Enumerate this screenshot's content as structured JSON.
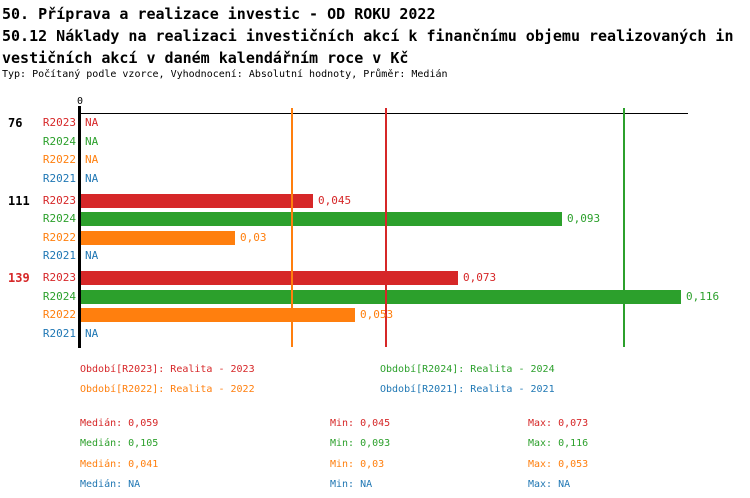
{
  "header": {
    "line1": "50. Příprava a realizace investic - OD ROKU 2022",
    "line2": "50.12 Náklady na realizaci investičních akcí k finančnímu objemu realizovaných in",
    "line3": "vestičních akcí v daném kalendářním roce v Kč",
    "meta": "Typ: Počítaný podle vzorce, Vyhodnocení: Absolutní hodnoty, Průměr: Medián"
  },
  "chart_data": {
    "type": "bar",
    "orientation": "horizontal",
    "x_axis": {
      "zero_tick_label": "0",
      "xlim": [
        0,
        0.129
      ],
      "grid": false
    },
    "series": [
      {
        "id": "R2023",
        "color": "#d62728",
        "median": 0.059
      },
      {
        "id": "R2024",
        "color": "#2ca02c",
        "median": 0.105
      },
      {
        "id": "R2022",
        "color": "#ff7f0e",
        "median": 0.041
      },
      {
        "id": "R2021",
        "color": "#1f77b4",
        "median": null
      }
    ],
    "groups": [
      {
        "label": "76",
        "label_color": "#000000",
        "rows": [
          {
            "series": "R2023",
            "value": null,
            "display": "NA"
          },
          {
            "series": "R2024",
            "value": null,
            "display": "NA"
          },
          {
            "series": "R2022",
            "value": null,
            "display": "NA"
          },
          {
            "series": "R2021",
            "value": null,
            "display": "NA"
          }
        ]
      },
      {
        "label": "111",
        "label_color": "#000000",
        "rows": [
          {
            "series": "R2023",
            "value": 0.045,
            "display": "0,045"
          },
          {
            "series": "R2024",
            "value": 0.093,
            "display": "0,093"
          },
          {
            "series": "R2022",
            "value": 0.03,
            "display": "0,03"
          },
          {
            "series": "R2021",
            "value": null,
            "display": "NA"
          }
        ]
      },
      {
        "label": "139",
        "label_color": "#d62728",
        "rows": [
          {
            "series": "R2023",
            "value": 0.073,
            "display": "0,073"
          },
          {
            "series": "R2024",
            "value": 0.116,
            "display": "0,116"
          },
          {
            "series": "R2022",
            "value": 0.053,
            "display": "0,053"
          },
          {
            "series": "R2021",
            "value": null,
            "display": "NA"
          }
        ]
      }
    ]
  },
  "legend": {
    "items": [
      {
        "text": "Období[R2023]: Realita - 2023",
        "color": "#d62728"
      },
      {
        "text": "Období[R2024]: Realita - 2024",
        "color": "#2ca02c"
      },
      {
        "text": "Období[R2022]: Realita - 2022",
        "color": "#ff7f0e"
      },
      {
        "text": "Období[R2021]: Realita - 2021",
        "color": "#1f77b4"
      }
    ]
  },
  "stats": {
    "rows": [
      {
        "series": "R2023",
        "color": "#d62728",
        "median": "Medián: 0,059",
        "min": "Min: 0,045",
        "max": "Max: 0,073"
      },
      {
        "series": "R2024",
        "color": "#2ca02c",
        "median": "Medián: 0,105",
        "min": "Min: 0,093",
        "max": "Max: 0,116"
      },
      {
        "series": "R2022",
        "color": "#ff7f0e",
        "median": "Medián: 0,041",
        "min": "Min: 0,03",
        "max": "Max: 0,053"
      },
      {
        "series": "R2021",
        "color": "#1f77b4",
        "median": "Medián: NA",
        "min": "Min: NA",
        "max": "Max: NA"
      }
    ]
  }
}
